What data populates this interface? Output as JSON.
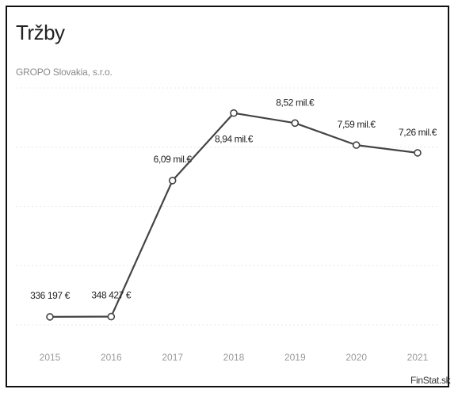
{
  "title": "Tržby",
  "subtitle": "GROPO Slovakia, s.r.o.",
  "source": "FinStat.sk",
  "colors": {
    "line": "#444444",
    "marker_fill": "#ffffff",
    "grid": "#e8e8e8"
  },
  "chart_data": {
    "type": "line",
    "title": "Tržby",
    "subtitle": "GROPO Slovakia, s.r.o.",
    "xlabel": "",
    "ylabel": "",
    "categories": [
      "2015",
      "2016",
      "2017",
      "2018",
      "2019",
      "2020",
      "2021"
    ],
    "series": [
      {
        "values": [
          0.336197,
          0.348427,
          6.09,
          8.94,
          8.52,
          7.59,
          7.26
        ],
        "data_labels": [
          "336 197 €",
          "348 427 €",
          "6,09 mil.€",
          "8,94 mil.€",
          "8,52 mil.€",
          "7,59 mil.€",
          "7,26 mil.€"
        ]
      }
    ],
    "ylim": [
      0,
      10
    ],
    "grid": true,
    "legend": "none"
  }
}
